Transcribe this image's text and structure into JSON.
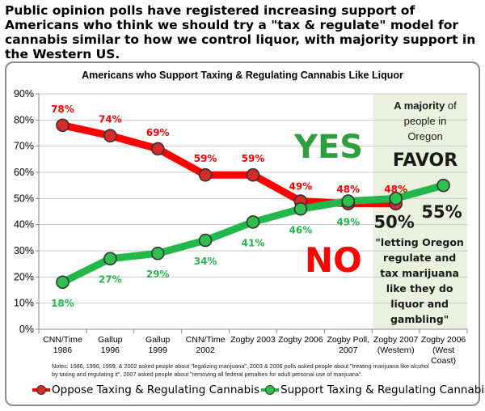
{
  "headline": "Public opinion polls have registered increasing support of  Americans who think we should try a \"tax & regulate\" model for cannabis similar to how we control liquor, with majority support in the Western US.",
  "notes": "Notes: 1986, 1996, 1999, & 2002 asked people about \"legalizing marijuana\".  2003 & 2006 polls asked people about \"treating marijuana like alcohol by taxing and regulating it\".  2007 asked people about \"removing all federal penalties for adult personal use of marijuana\".",
  "colors": {
    "oppose": "#ff0000",
    "oppose_marker": "#d62b2b",
    "support": "#22b84c",
    "support_marker": "#2fbf4e",
    "oregon_bg": "#ebf1de",
    "yes": "#2e9e3e",
    "no": "#ff0000"
  },
  "chart_data": {
    "type": "line",
    "title": "Americans who Support Taxing & Regulating Cannabis Like Liquor",
    "categories": [
      [
        "CNN/Time",
        "1986"
      ],
      [
        "Gallup",
        "1996"
      ],
      [
        "Gallup",
        "1999"
      ],
      [
        "CNN/Time",
        "2002"
      ],
      [
        "Zogby 2003"
      ],
      [
        "Zogby 2006"
      ],
      [
        "Zogby Poll,",
        "2007"
      ],
      [
        "Zogby 2007",
        "(Western)"
      ],
      [
        "Zogby 2006",
        "(West",
        "Coast)"
      ]
    ],
    "ylim": [
      0,
      90
    ],
    "yticks": [
      "0%",
      "10%",
      "20%",
      "30%",
      "40%",
      "50%",
      "60%",
      "70%",
      "80%",
      "90%"
    ],
    "grid": true,
    "legend_position": "bottom",
    "series": [
      {
        "name": "Oppose Taxing & Regulating Cannabis",
        "values": [
          78,
          74,
          69,
          59,
          59,
          49,
          48,
          48,
          null
        ],
        "labels": [
          "78%",
          "74%",
          "69%",
          "59%",
          "59%",
          "49%",
          "48%",
          "48%",
          ""
        ]
      },
      {
        "name": "Support Taxing & Regulating Cannabis",
        "values": [
          18,
          27,
          29,
          34,
          41,
          46,
          49,
          50,
          55
        ],
        "labels": [
          "18%",
          "27%",
          "29%",
          "34%",
          "41%",
          "46%",
          "49%",
          "50%",
          "55%"
        ]
      }
    ],
    "annotations": {
      "yes": "YES",
      "no": "NO",
      "oregon_line1_bold": "A majority",
      "oregon_line1_rest": " of",
      "oregon_line2": "people in",
      "oregon_line3": "Oregon",
      "oregon_favor": "FAVOR",
      "quote": [
        "\"letting Oregon",
        "regulate and",
        "tax marijuana",
        "like they do",
        "liquor and",
        "gambling\""
      ]
    }
  }
}
